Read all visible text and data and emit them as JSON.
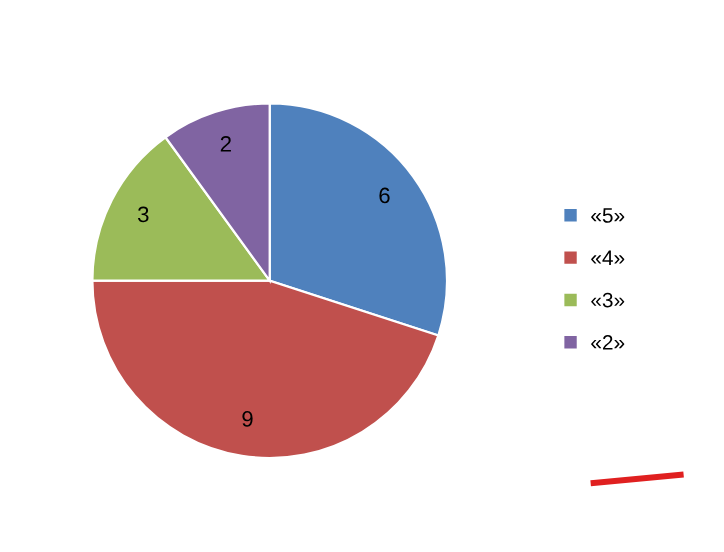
{
  "chart_data": {
    "type": "pie",
    "categories": [
      "«5»",
      "«4»",
      "«3»",
      "«2»"
    ],
    "values": [
      6,
      9,
      3,
      2
    ],
    "colors": [
      "#4f81bd",
      "#c0504d",
      "#9bbb59",
      "#8064a2"
    ],
    "data_labels": true,
    "legend": "right"
  }
}
